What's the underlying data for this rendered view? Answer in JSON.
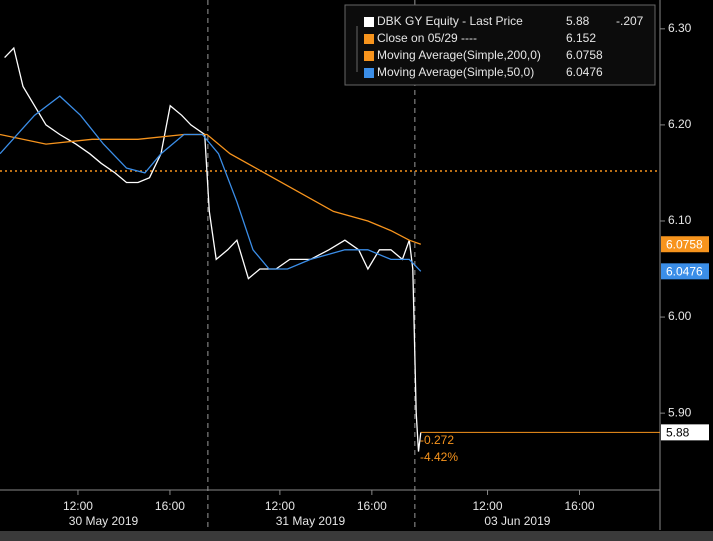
{
  "chart_data": {
    "type": "line",
    "xlim": [
      0,
      28.7
    ],
    "ylim": [
      5.82,
      6.33
    ],
    "yticks": [
      {
        "value": 5.9,
        "label": "5.90"
      },
      {
        "value": 6.0,
        "label": "6.00"
      },
      {
        "value": 6.1,
        "label": "6.10"
      },
      {
        "value": 6.2,
        "label": "6.20"
      },
      {
        "value": 6.3,
        "label": "6.30"
      }
    ],
    "xticks": [
      {
        "value": 3.39,
        "label": "12:00"
      },
      {
        "value": 7.39,
        "label": "16:00"
      },
      {
        "value": 12.17,
        "label": "12:00"
      },
      {
        "value": 16.17,
        "label": "16:00"
      },
      {
        "value": 21.2,
        "label": "12:00"
      },
      {
        "value": 25.2,
        "label": "16:00"
      }
    ],
    "date_labels": [
      {
        "value": 4.5,
        "label": "30 May 2019"
      },
      {
        "value": 13.5,
        "label": "31 May 2019"
      },
      {
        "value": 22.5,
        "label": "03 Jun 2019"
      }
    ],
    "day_breaks": [
      9.04,
      18.04
    ],
    "series": [
      {
        "name": "DBK GY Equity - Last Price",
        "color": "#ffffff",
        "last_value": 5.88,
        "change": {
          "value": -0.207,
          "label": "-.207"
        },
        "x": [
          0.2,
          0.6,
          1.0,
          1.5,
          2.0,
          2.6,
          3.3,
          3.9,
          4.4,
          5.0,
          5.5,
          6.0,
          6.5,
          7.0,
          7.4,
          7.9,
          8.3,
          8.9,
          9.1,
          9.4,
          9.9,
          10.3,
          10.8,
          11.3,
          12.0,
          12.6,
          13.5,
          14.3,
          15.0,
          15.6,
          16.0,
          16.5,
          17.0,
          17.5,
          17.8,
          17.95,
          18.1,
          18.2,
          18.3
        ],
        "values": [
          6.27,
          6.28,
          6.24,
          6.22,
          6.2,
          6.19,
          6.18,
          6.17,
          6.16,
          6.15,
          6.14,
          6.14,
          6.145,
          6.17,
          6.22,
          6.21,
          6.2,
          6.19,
          6.11,
          6.06,
          6.07,
          6.08,
          6.04,
          6.05,
          6.05,
          6.06,
          6.06,
          6.07,
          6.08,
          6.07,
          6.05,
          6.07,
          6.07,
          6.06,
          6.08,
          6.05,
          5.9,
          5.86,
          5.88
        ]
      },
      {
        "name": "Moving Average(Simple,200,0)",
        "color": "#f7941d",
        "last_value": 6.0758,
        "x": [
          0,
          2,
          4,
          6,
          8,
          9,
          10,
          11.5,
          13,
          14.5,
          16,
          17,
          17.8,
          18.3
        ],
        "values": [
          6.19,
          6.18,
          6.185,
          6.185,
          6.19,
          6.19,
          6.17,
          6.15,
          6.13,
          6.11,
          6.1,
          6.09,
          6.08,
          6.0758
        ]
      },
      {
        "name": "Moving Average(Simple,50,0)",
        "color": "#3b8ee8",
        "last_value": 6.0476,
        "x": [
          0,
          1.5,
          2.6,
          3.5,
          4.5,
          5.5,
          6.3,
          7,
          8,
          8.8,
          9.5,
          10.3,
          11.0,
          11.7,
          12.5,
          13.5,
          15,
          16,
          17,
          17.8,
          18.3
        ],
        "values": [
          6.17,
          6.21,
          6.23,
          6.21,
          6.18,
          6.155,
          6.15,
          6.17,
          6.19,
          6.19,
          6.17,
          6.12,
          6.07,
          6.05,
          6.05,
          6.06,
          6.07,
          6.07,
          6.06,
          6.06,
          6.0476
        ]
      }
    ],
    "reference_line": {
      "name": "Close on 05/29 ----",
      "color": "#f7941d",
      "value": 6.152
    },
    "annotations": [
      "-0.272",
      "-4.42%"
    ]
  }
}
